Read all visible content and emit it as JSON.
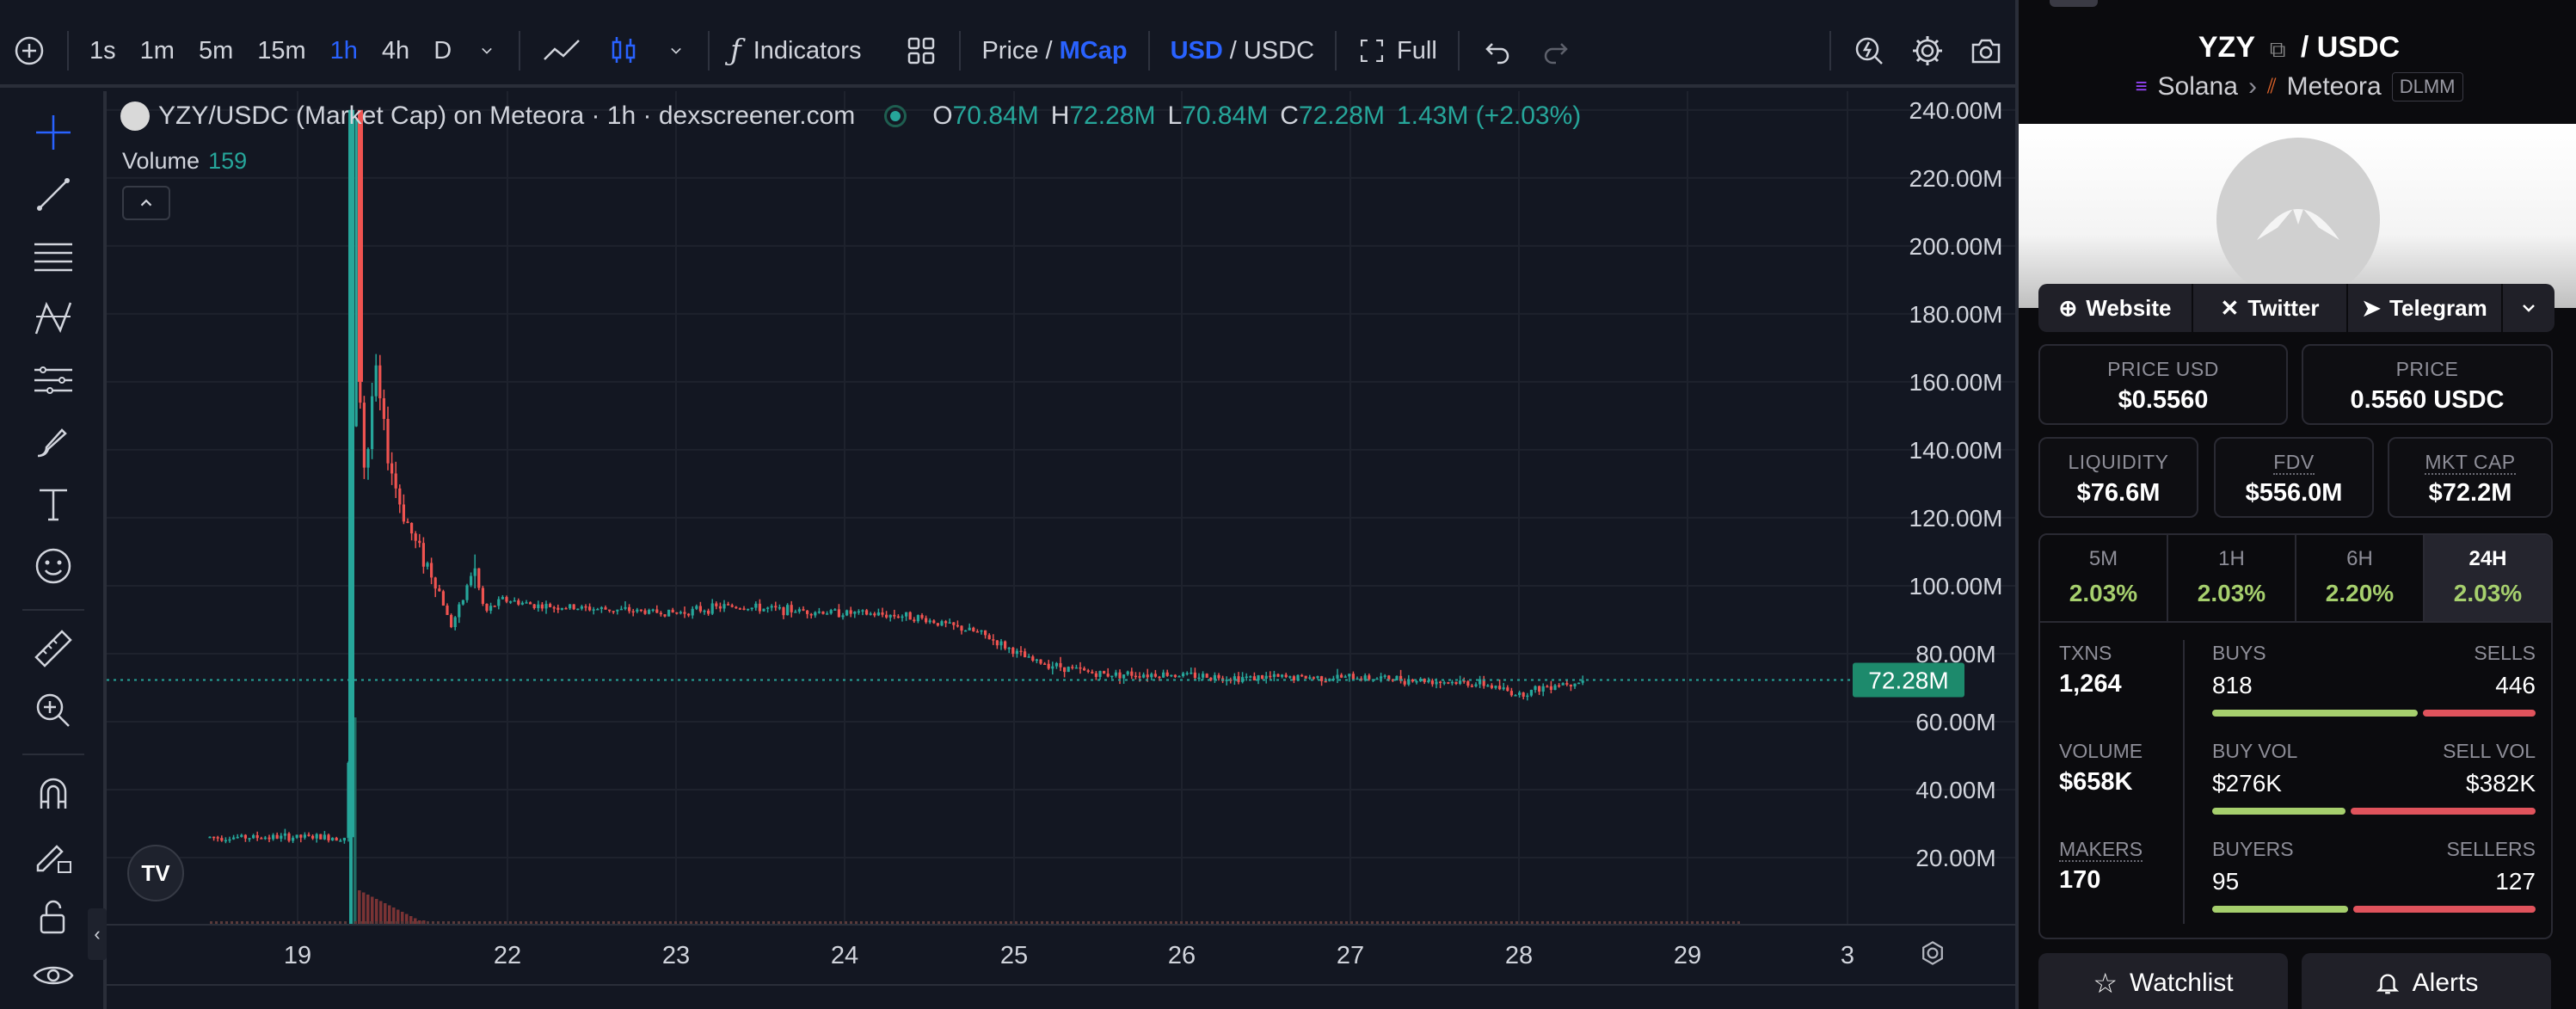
{
  "toolbar": {
    "intervals": [
      "1s",
      "1m",
      "5m",
      "15m",
      "1h",
      "4h",
      "D"
    ],
    "active_interval": "1h",
    "indicators_label": "Indicators",
    "price_label": "Price",
    "mcap_label": "MCap",
    "usd_label": "USD",
    "usdc_label": "USDC",
    "full_label": "Full"
  },
  "legend": {
    "title": "YZY/USDC (Market Cap) on Meteora · 1h · dexscreener.com",
    "o_label": "O",
    "o_value": "70.84M",
    "h_label": "H",
    "h_value": "72.28M",
    "l_label": "L",
    "l_value": "70.84M",
    "c_label": "C",
    "c_value": "72.28M",
    "change": "1.43M (+2.03%)",
    "volume_label": "Volume",
    "volume_value": "159"
  },
  "chart_data": {
    "type": "candlestick",
    "y_axis_labels": [
      "240.00M",
      "220.00M",
      "200.00M",
      "180.00M",
      "160.00M",
      "140.00M",
      "120.00M",
      "100.00M",
      "80.00M",
      "60.00M",
      "40.00M",
      "20.00M"
    ],
    "y_axis_values": [
      240,
      220,
      200,
      180,
      160,
      140,
      120,
      100,
      80,
      60,
      40,
      20
    ],
    "x_axis_labels": [
      "19",
      "22",
      "23",
      "24",
      "25",
      "26",
      "27",
      "28",
      "29",
      "3"
    ],
    "current_price_label": "72.28M",
    "current_price_value": 72.28,
    "ylim": [
      0,
      243
    ],
    "series_close_approx": [
      [
        18.5,
        26
      ],
      [
        19.25,
        26
      ],
      [
        19.3,
        240
      ],
      [
        19.35,
        160
      ],
      [
        19.45,
        130
      ],
      [
        19.6,
        165
      ],
      [
        19.8,
        140
      ],
      [
        20.0,
        125
      ],
      [
        20.3,
        113
      ],
      [
        20.7,
        102
      ],
      [
        21.0,
        88
      ],
      [
        21.2,
        95
      ],
      [
        21.4,
        106
      ],
      [
        21.6,
        92
      ],
      [
        21.9,
        96
      ],
      [
        22.2,
        94
      ],
      [
        22.6,
        93
      ],
      [
        23.0,
        92
      ],
      [
        23.3,
        94
      ],
      [
        23.6,
        93
      ],
      [
        24.0,
        92
      ],
      [
        24.4,
        91
      ],
      [
        24.8,
        86
      ],
      [
        25.1,
        78
      ],
      [
        25.5,
        74
      ],
      [
        25.9,
        74
      ],
      [
        26.3,
        73
      ],
      [
        26.7,
        73
      ],
      [
        27.1,
        73
      ],
      [
        27.5,
        72
      ],
      [
        27.8,
        71
      ],
      [
        28.0,
        68
      ],
      [
        28.2,
        71
      ],
      [
        28.4,
        72.28
      ]
    ]
  },
  "panel": {
    "base": "YZY",
    "quote": "USDC",
    "chain": "Solana",
    "dex": "Meteora",
    "pool_type": "DLMM",
    "links": [
      "Website",
      "Twitter",
      "Telegram"
    ],
    "price_usd_label": "PRICE USD",
    "price_usd": "$0.5560",
    "price_label": "PRICE",
    "price": "0.5560 USDC",
    "liquidity_label": "LIQUIDITY",
    "liquidity": "$76.6M",
    "fdv_label": "FDV",
    "fdv": "$556.0M",
    "mktcap_label": "MKT CAP",
    "mktcap": "$72.2M",
    "changes": [
      {
        "label": "5M",
        "value": "2.03%"
      },
      {
        "label": "1H",
        "value": "2.03%"
      },
      {
        "label": "6H",
        "value": "2.20%"
      },
      {
        "label": "24H",
        "value": "2.03%"
      }
    ],
    "txns_label": "TXNS",
    "txns": "1,264",
    "buys_label": "BUYS",
    "buys": "818",
    "sells_label": "SELLS",
    "sells": "446",
    "volume_label": "VOLUME",
    "volume": "$658K",
    "buy_vol_label": "BUY VOL",
    "buy_vol": "$276K",
    "sell_vol_label": "SELL VOL",
    "sell_vol": "$382K",
    "makers_label": "MAKERS",
    "makers": "170",
    "buyers_label": "BUYERS",
    "buyers": "95",
    "sellers_label": "SELLERS",
    "sellers": "127",
    "watchlist_label": "Watchlist",
    "alerts_label": "Alerts"
  },
  "colors": {
    "up": "#26a69a",
    "down": "#ef5350",
    "accent": "#2962ff",
    "positive": "#a6cf6d"
  }
}
